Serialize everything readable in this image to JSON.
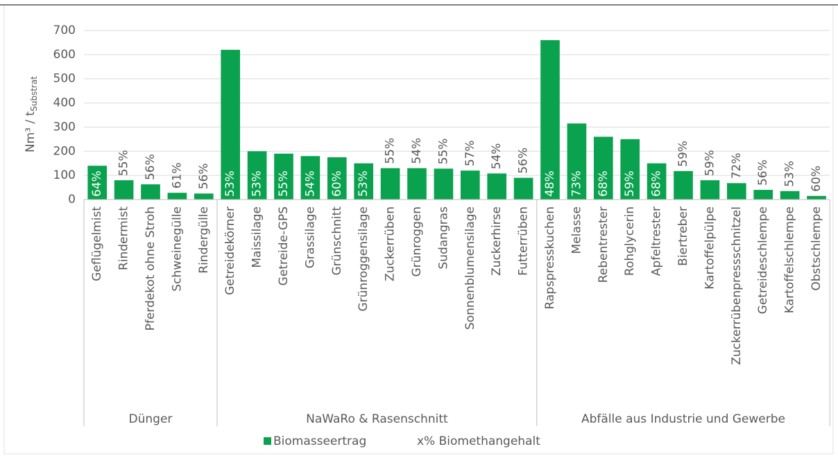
{
  "chart_data": {
    "type": "bar",
    "y_label": {
      "main": "Nm³ / t",
      "sub": "Substrat"
    },
    "ylim": [
      0,
      700
    ],
    "yticks": [
      0,
      100,
      200,
      300,
      400,
      500,
      600,
      700
    ],
    "grid": true,
    "color": "#0aa24f",
    "series_name": "Biomasseertrag",
    "label_series_name": "x% Biomethangehalt",
    "groups": [
      {
        "label": "Dünger",
        "categories": [
          "Geflügelmist",
          "Rindermist",
          "Pferdekot ohne Stroh",
          "Schweinegülle",
          "Rindergülle"
        ],
        "values": [
          140,
          80,
          63,
          28,
          25
        ],
        "methane": [
          64,
          55,
          56,
          61,
          56
        ],
        "methane_labels": [
          "64%",
          "55%",
          "56%",
          "61%",
          "56%"
        ]
      },
      {
        "label": "NaWaRo & Rasenschnitt",
        "categories": [
          "Getreidekörner",
          "Maissilage",
          "Getreide-GPS",
          "Grassilage",
          "Grünschnitt",
          "Grünroggensilage",
          "Zuckerrüben",
          "Grünroggen",
          "Sudangras",
          "Sonnenblumensilage",
          "Zuckerhirse",
          "Futterrüben"
        ],
        "values": [
          620,
          200,
          190,
          180,
          175,
          150,
          130,
          130,
          128,
          120,
          108,
          90
        ],
        "methane": [
          53,
          53,
          55,
          54,
          60,
          53,
          55,
          54,
          55,
          57,
          54,
          56
        ],
        "methane_labels": [
          "53%",
          "53%",
          "55%",
          "54%",
          "60%",
          "53%",
          "55%",
          "54%",
          "55%",
          "57%",
          "54%",
          "56%"
        ]
      },
      {
        "label": "Abfälle aus Industrie und Gewerbe",
        "categories": [
          "Rapspresskuchen",
          "Melasse",
          "Rebentrester",
          "Rohglycerin",
          "Apfeltrester",
          "Biertreber",
          "Kartoffelpülpe",
          "Zuckerrübenpressschnitzel",
          "Getreideschlempe",
          "Kartoffelschlempe",
          "Obstschlempe"
        ],
        "values": [
          660,
          315,
          260,
          250,
          150,
          118,
          80,
          68,
          40,
          35,
          15
        ],
        "methane": [
          48,
          73,
          68,
          59,
          68,
          59,
          59,
          72,
          56,
          53,
          60
        ],
        "methane_labels": [
          "48%",
          "73%",
          "68%",
          "59%",
          "68%",
          "59%",
          "59%",
          "72%",
          "56%",
          "53%",
          "60%"
        ]
      }
    ]
  }
}
